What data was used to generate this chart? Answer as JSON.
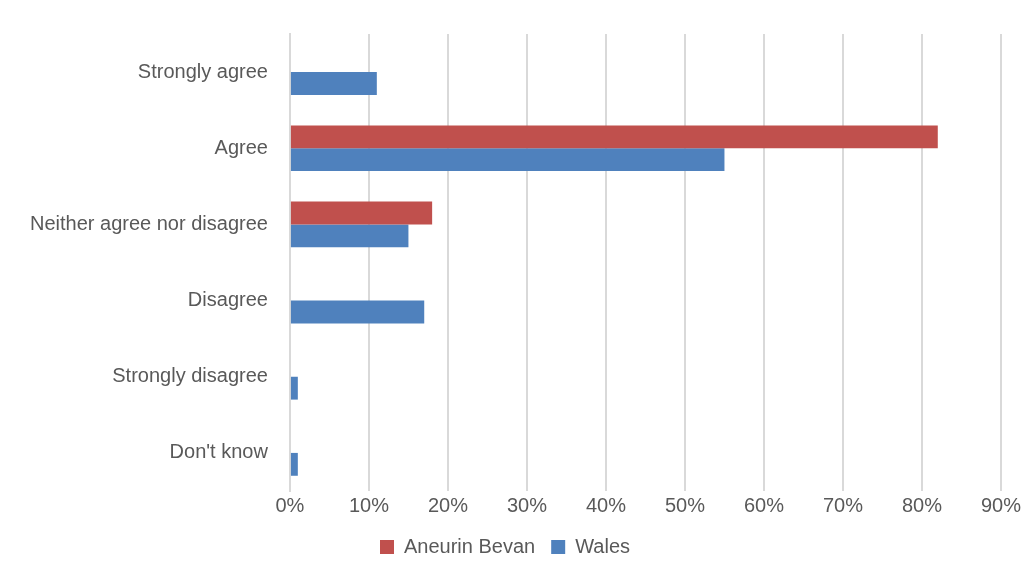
{
  "chart_data": {
    "type": "bar",
    "orientation": "horizontal",
    "categories": [
      "Strongly agree",
      "Agree",
      "Neither agree nor disagree",
      "Disagree",
      "Strongly disagree",
      "Don't know"
    ],
    "series": [
      {
        "name": "Aneurin Bevan",
        "color": "#c0504d",
        "values": [
          null,
          82,
          18,
          null,
          null,
          null
        ]
      },
      {
        "name": "Wales",
        "color": "#4f81bd",
        "values": [
          11,
          55,
          15,
          17,
          1,
          1
        ]
      }
    ],
    "xlim": [
      0,
      90
    ],
    "xticks": [
      {
        "value": 0,
        "label": "0%"
      },
      {
        "value": 10,
        "label": "10%"
      },
      {
        "value": 20,
        "label": "20%"
      },
      {
        "value": 30,
        "label": "30%"
      },
      {
        "value": 40,
        "label": "40%"
      },
      {
        "value": 50,
        "label": "50%"
      },
      {
        "value": 60,
        "label": "60%"
      },
      {
        "value": 70,
        "label": "70%"
      },
      {
        "value": 80,
        "label": "80%"
      },
      {
        "value": 90,
        "label": "90%"
      }
    ],
    "grid": "x",
    "legend": "bottom"
  }
}
